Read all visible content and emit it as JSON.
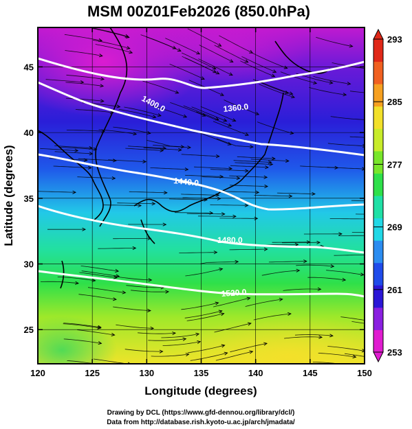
{
  "title": "MSM 00Z01Feb2026 (850.0hPa)",
  "x_axis": {
    "label": "Longitude (degrees)",
    "min": 120,
    "max": 150,
    "ticks": [
      "120",
      "125",
      "130",
      "135",
      "140",
      "145",
      "150"
    ]
  },
  "y_axis": {
    "label": "Latitude (degrees)",
    "min": 22.4,
    "max": 48.0,
    "ticks": [
      "25",
      "30",
      "35",
      "40",
      "45"
    ]
  },
  "colorbar": {
    "min": 253,
    "max": 293,
    "ticks": [
      "253",
      "261",
      "269",
      "277",
      "285",
      "293"
    ],
    "palette": [
      "#e01cd0",
      "#8a1fe0",
      "#2b16d6",
      "#1f4bea",
      "#2b8cf0",
      "#21d8e6",
      "#1fe0a6",
      "#2ee04a",
      "#78e62a",
      "#c8ec2a",
      "#f2e02a",
      "#f6a020",
      "#f06020",
      "#e02818"
    ]
  },
  "contours": [
    {
      "label": "1400.0"
    },
    {
      "label": "1360.0"
    },
    {
      "label": "1440.0"
    },
    {
      "label": "1480.0"
    },
    {
      "label": "1520.0"
    }
  ],
  "credits": {
    "line1": "Drawing by DCL (https://www.gfd-dennou.org/library/dcl/)",
    "line2": "Data from http://database.rish.kyoto-u.ac.jp/arch/jmadata/"
  },
  "colors": {
    "contour": "#ffffff",
    "streamline": "#000000",
    "frame": "#000000"
  }
}
